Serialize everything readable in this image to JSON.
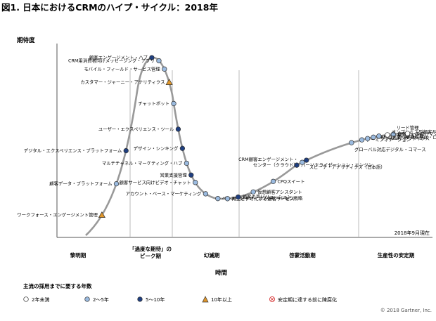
{
  "chart_data": {
    "type": "scatter",
    "title": "図1. 日本におけるCRMのハイプ・サイクル：2018年",
    "ylabel": "期待度",
    "xlabel": "時間",
    "as_of": "2018年9月現在",
    "copyright": "© 2018 Gartner, Inc.",
    "phases": [
      "黎明期",
      "「過度な期待」の\nピーク期",
      "幻滅期",
      "啓蒙活動期",
      "生産性の安定期"
    ],
    "legend_title": "主流の採用までに要する年数",
    "legend": [
      {
        "key": "lt2",
        "label": "2年未満",
        "color": "#ffffff"
      },
      {
        "key": "2to5",
        "label": "2～5年",
        "color": "#9bbbe0"
      },
      {
        "key": "5to10",
        "label": "5～10年",
        "color": "#1f3f80"
      },
      {
        "key": "gt10",
        "label": "10年以上",
        "color": "#e0962a"
      },
      {
        "key": "obsolete",
        "label": "安定期に達する前に陳腐化",
        "color": "#d94040"
      }
    ],
    "items": [
      {
        "label": "ワークフォース・エンゲージメント管理",
        "cat": "gt10",
        "t": 0.05,
        "side": "left"
      },
      {
        "label": "顧客データ・プラットフォーム",
        "cat": "2to5",
        "t": 0.095,
        "side": "left"
      },
      {
        "label": "デジタル・エクスペリエンス・プラットフォーム",
        "cat": "5to10",
        "t": 0.125,
        "side": "left"
      },
      {
        "label": "顧客エンゲージメント・ハブ",
        "cat": "5to10",
        "t": 0.205,
        "side": "left"
      },
      {
        "label": "CRM用消費者向けメッセージング・アプリ",
        "cat": "2to5",
        "t": 0.227,
        "side": "left"
      },
      {
        "label": "モバイル・フィールド・サービス管理",
        "cat": "2to5",
        "t": 0.244,
        "side": "left"
      },
      {
        "label": "カスタマー・ジャーニー・アナリティクス",
        "cat": "gt10",
        "t": 0.259,
        "side": "left"
      },
      {
        "label": "チャットボット",
        "cat": "2to5",
        "t": 0.273,
        "side": "left"
      },
      {
        "label": "ユーザー・エクスペリエンス・ツール",
        "cat": "5to10",
        "t": 0.287,
        "side": "left"
      },
      {
        "label": "デザイン・シンキング",
        "cat": "5to10",
        "t": 0.3,
        "side": "left"
      },
      {
        "label": "マルチチャネル・マーケティング・ハブ",
        "cat": "2to5",
        "t": 0.313,
        "side": "left"
      },
      {
        "label": "営業支援管理",
        "cat": "5to10",
        "t": 0.327,
        "side": "left"
      },
      {
        "label": "顧客サービス向けビデオ・チャット",
        "cat": "2to5",
        "t": 0.34,
        "side": "left"
      },
      {
        "label": "アカウント・ベース・マーケティング",
        "cat": "2to5",
        "t": 0.372,
        "side": "left"
      },
      {
        "label": "ベース・レイヤ・アプリケーション戦略",
        "cat": "2to5",
        "t": 0.41,
        "side": "right"
      },
      {
        "label": "再生ビデオによる顧客サービス",
        "cat": "2to5",
        "t": 0.44,
        "side": "right"
      },
      {
        "label": "顧客の声ソリューション",
        "cat": "5to10",
        "t": 0.473,
        "side": "right"
      },
      {
        "label": "仮想顧客アシスタント",
        "cat": "2to5",
        "t": 0.52,
        "side": "right"
      },
      {
        "label": "CPQスイート",
        "cat": "2to5",
        "t": 0.582,
        "side": "right"
      },
      {
        "label": "パーソナライゼーション・エンジン",
        "cat": "5to10",
        "t": 0.655,
        "side": "right"
      },
      {
        "label": "CRM顧客エンゲージメント・\nセンター（クラウド）",
        "cat": "2to5",
        "t": 0.672,
        "side": "left"
      },
      {
        "label": "スピーチ・アナリティクス（日本語）",
        "cat": "5to10",
        "t": 0.685,
        "side": "below"
      },
      {
        "label": "グローバル対応デジタル・コマース",
        "cat": "2to5",
        "t": 0.825,
        "side": "below"
      },
      {
        "label": "ゲーミフィケーション",
        "cat": "2to5",
        "t": 0.857,
        "side": "right"
      },
      {
        "label": "ソーシャル・アナリティクス",
        "cat": "2to5",
        "t": 0.875,
        "side": "right"
      },
      {
        "label": "CRMの実装（グローバル・ロールアウト）",
        "cat": "2to5",
        "t": 0.893,
        "side": "right"
      },
      {
        "label": "パートナー関係管理",
        "cat": "2to5",
        "t": 0.91,
        "side": "right"
      },
      {
        "label": "顧客データ向けマスタ・データ管理",
        "cat": "2to5",
        "t": 0.955,
        "side": "right"
      },
      {
        "label": "オンプレミス型顧客サービス・\nアプリケーション",
        "cat": "lt2",
        "t": 1.02,
        "side": "right"
      },
      {
        "label": "リード管理",
        "cat": "lt2",
        "t": 1.09,
        "side": "above"
      }
    ]
  }
}
